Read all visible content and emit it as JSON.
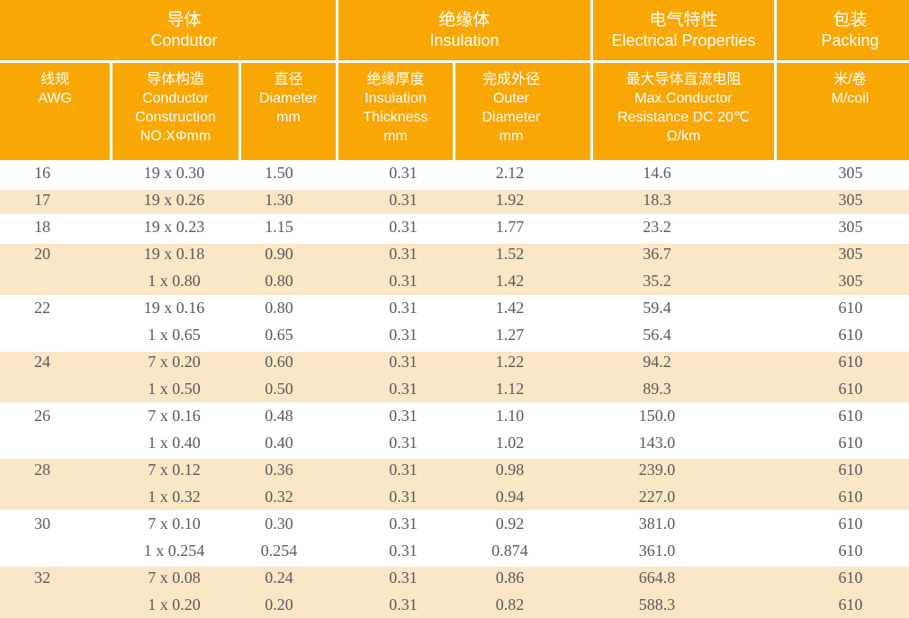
{
  "colors": {
    "header_orange": "#F8A705",
    "band_cream": "#FBE6C6",
    "data_text_gray": "#5B5959",
    "header_text": "#FFFFFF"
  },
  "table": {
    "groups": [
      {
        "zh": "导体",
        "en": "Condutor"
      },
      {
        "zh": "绝缘体",
        "en": "Insulation"
      },
      {
        "zh": "电气特性",
        "en": "Electrical Properties"
      },
      {
        "zh": "包装",
        "en": "Packing"
      }
    ],
    "columns": [
      {
        "label": "线规\nAWG"
      },
      {
        "label": "导体构造\nConductor\nConstruction\nNO.XΦmm"
      },
      {
        "label": "直径\nDiameter\nmm"
      },
      {
        "label": "绝缘厚度\nInsulation\nThickness\nmm"
      },
      {
        "label": "完成外径\nOuter\nDiameter\nmm"
      },
      {
        "label": "最大导体直流电阻\nMax.Conductor\nResistance DC 20℃\nΩ/km"
      },
      {
        "label": "米/卷\nM/coil"
      }
    ],
    "rows": [
      {
        "awg": "16",
        "construction": "19 x 0.30",
        "diameter": "1.50",
        "thickness": "0.31",
        "outer": "2.12",
        "resistance": "14.6",
        "packing": "305",
        "band": false
      },
      {
        "awg": "17",
        "construction": "19 x 0.26",
        "diameter": "1.30",
        "thickness": "0.31",
        "outer": "1.92",
        "resistance": "18.3",
        "packing": "305",
        "band": true
      },
      {
        "awg": "18",
        "construction": "19 x 0.23",
        "diameter": "1.15",
        "thickness": "0.31",
        "outer": "1.77",
        "resistance": "23.2",
        "packing": "305",
        "band": false
      },
      {
        "awg": "20",
        "construction": "19 x 0.18",
        "diameter": "0.90",
        "thickness": "0.31",
        "outer": "1.52",
        "resistance": "36.7",
        "packing": "305",
        "band": true
      },
      {
        "awg": "",
        "construction": "1 x 0.80",
        "diameter": "0.80",
        "thickness": "0.31",
        "outer": "1.42",
        "resistance": "35.2",
        "packing": "305",
        "band": true
      },
      {
        "awg": "22",
        "construction": "19 x 0.16",
        "diameter": "0.80",
        "thickness": "0.31",
        "outer": "1.42",
        "resistance": "59.4",
        "packing": "610",
        "band": false
      },
      {
        "awg": "",
        "construction": "1 x 0.65",
        "diameter": "0.65",
        "thickness": "0.31",
        "outer": "1.27",
        "resistance": "56.4",
        "packing": "610",
        "band": false
      },
      {
        "awg": "24",
        "construction": "7 x 0.20",
        "diameter": "0.60",
        "thickness": "0.31",
        "outer": "1.22",
        "resistance": "94.2",
        "packing": "610",
        "band": true
      },
      {
        "awg": "",
        "construction": "1 x 0.50",
        "diameter": "0.50",
        "thickness": "0.31",
        "outer": "1.12",
        "resistance": "89.3",
        "packing": "610",
        "band": true
      },
      {
        "awg": "26",
        "construction": "7 x 0.16",
        "diameter": "0.48",
        "thickness": "0.31",
        "outer": "1.10",
        "resistance": "150.0",
        "packing": "610",
        "band": false
      },
      {
        "awg": "",
        "construction": "1 x 0.40",
        "diameter": "0.40",
        "thickness": "0.31",
        "outer": "1.02",
        "resistance": "143.0",
        "packing": "610",
        "band": false
      },
      {
        "awg": "28",
        "construction": "7 x 0.12",
        "diameter": "0.36",
        "thickness": "0.31",
        "outer": "0.98",
        "resistance": "239.0",
        "packing": "610",
        "band": true
      },
      {
        "awg": "",
        "construction": "1 x 0.32",
        "diameter": "0.32",
        "thickness": "0.31",
        "outer": "0.94",
        "resistance": "227.0",
        "packing": "610",
        "band": true
      },
      {
        "awg": "30",
        "construction": "7 x 0.10",
        "diameter": "0.30",
        "thickness": "0.31",
        "outer": "0.92",
        "resistance": "381.0",
        "packing": "610",
        "band": false
      },
      {
        "awg": "",
        "construction": "1 x 0.254",
        "diameter": "0.254",
        "thickness": "0.31",
        "outer": "0.874",
        "resistance": "361.0",
        "packing": "610",
        "band": false
      },
      {
        "awg": "32",
        "construction": "7 x 0.08",
        "diameter": "0.24",
        "thickness": "0.31",
        "outer": "0.86",
        "resistance": "664.8",
        "packing": "610",
        "band": true
      },
      {
        "awg": "",
        "construction": "1 x 0.20",
        "diameter": "0.20",
        "thickness": "0.31",
        "outer": "0.82",
        "resistance": "588.3",
        "packing": "610",
        "band": true
      }
    ]
  }
}
